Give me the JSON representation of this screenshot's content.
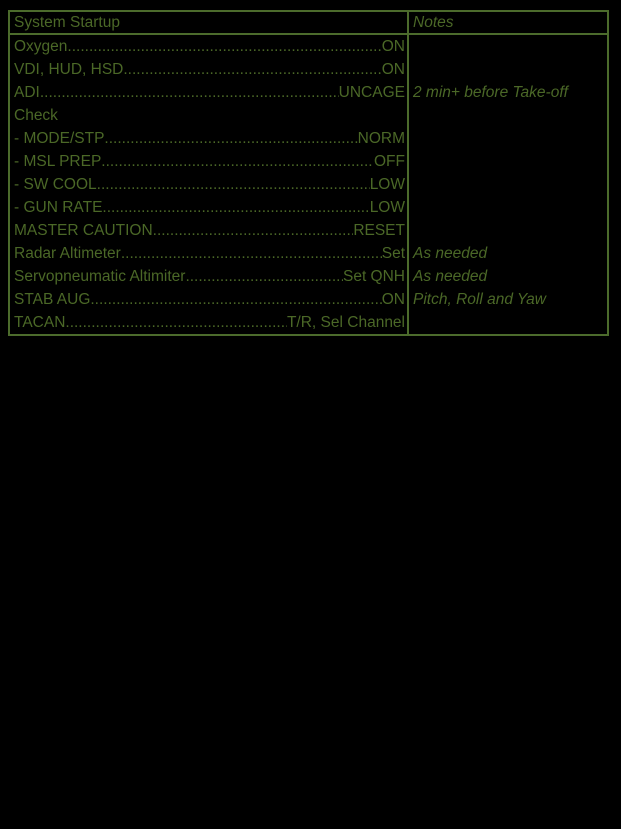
{
  "colors": {
    "background": "#000000",
    "text": "#4b6827",
    "border": "#4c6b2c"
  },
  "table": {
    "header": {
      "system": "System Startup",
      "notes": "Notes"
    },
    "rows": [
      {
        "item": "Oxygen",
        "value": "ON",
        "note": ""
      },
      {
        "item": "VDI, HUD, HSD",
        "value": "ON",
        "note": ""
      },
      {
        "item": "ADI",
        "value": "UNCAGE",
        "note": "2 min+ before Take-off"
      },
      {
        "item": "Check",
        "value": "",
        "note": ""
      },
      {
        "item": "- MODE/STP",
        "value": "NORM",
        "note": ""
      },
      {
        "item": "- MSL PREP",
        "value": "OFF",
        "note": ""
      },
      {
        "item": "- SW COOL",
        "value": "LOW",
        "note": ""
      },
      {
        "item": "- GUN RATE",
        "value": "LOW",
        "note": ""
      },
      {
        "item": "MASTER CAUTION",
        "value": "RESET",
        "note": ""
      },
      {
        "item": "Radar Altimeter",
        "value": "Set",
        "note": "As needed"
      },
      {
        "item": "Servopneumatic Altimiter",
        "value": "Set QNH",
        "note": "As needed"
      },
      {
        "item": "STAB AUG",
        "value": "ON",
        "note": "Pitch, Roll and Yaw"
      },
      {
        "item": "TACAN",
        "value": "T/R, Sel Channel",
        "note": ""
      }
    ]
  }
}
